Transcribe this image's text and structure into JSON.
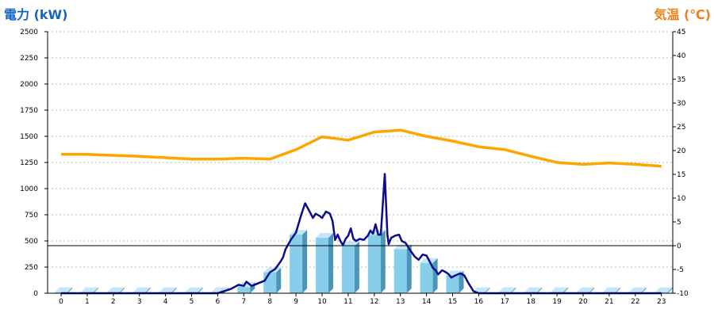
{
  "chart_data": {
    "type": "bar+line",
    "left_title": "電力 (kW)",
    "right_title": "気温 (℃)",
    "left_title_color": "#1565c0",
    "right_title_color": "#ef7f1a",
    "ylim_left": [
      0,
      2500
    ],
    "yticks_left": [
      0,
      250,
      500,
      750,
      1000,
      1250,
      1500,
      1750,
      2000,
      2250,
      2500
    ],
    "ylim_right": [
      -10,
      45
    ],
    "yticks_right": [
      -10,
      -5,
      0,
      5,
      10,
      15,
      20,
      25,
      30,
      35,
      40,
      45
    ],
    "categories": [
      "0",
      "1",
      "2",
      "3",
      "4",
      "5",
      "6",
      "7",
      "8",
      "9",
      "10",
      "11",
      "12",
      "13",
      "14",
      "15",
      "16",
      "17",
      "18",
      "19",
      "20",
      "21",
      "22",
      "23"
    ],
    "grid": true,
    "series": [
      {
        "kind": "bar",
        "axis": "left",
        "color": "#87ceeb",
        "values": [
          10,
          10,
          10,
          10,
          10,
          10,
          10,
          60,
          200,
          560,
          530,
          450,
          560,
          420,
          290,
          170,
          10,
          10,
          10,
          10,
          10,
          10,
          10,
          10
        ]
      },
      {
        "kind": "line",
        "axis": "left",
        "color": "#0d0d8c",
        "x": [
          0,
          1,
          2,
          3,
          4,
          5,
          6,
          6.5,
          6.8,
          7.0,
          7.1,
          7.3,
          7.6,
          7.8,
          8.0,
          8.2,
          8.4,
          8.5,
          8.6,
          8.8,
          9.0,
          9.2,
          9.35,
          9.5,
          9.65,
          9.75,
          9.9,
          10.0,
          10.15,
          10.3,
          10.4,
          10.5,
          10.6,
          10.7,
          10.8,
          10.9,
          11.0,
          11.1,
          11.2,
          11.3,
          11.45,
          11.6,
          11.75,
          11.85,
          11.95,
          12.05,
          12.15,
          12.25,
          12.4,
          12.5,
          12.55,
          12.65,
          12.8,
          12.95,
          13.05,
          13.2,
          13.35,
          13.55,
          13.7,
          13.85,
          14.0,
          14.15,
          14.25,
          14.35,
          14.45,
          14.6,
          14.75,
          14.85,
          14.95,
          15.1,
          15.3,
          15.45,
          15.6,
          15.8,
          16.0,
          17,
          18,
          19,
          20,
          21,
          22,
          23
        ],
        "values": [
          0,
          0,
          0,
          0,
          0,
          0,
          0,
          40,
          80,
          70,
          110,
          70,
          100,
          120,
          200,
          230,
          300,
          340,
          420,
          510,
          580,
          750,
          860,
          790,
          720,
          760,
          740,
          720,
          780,
          760,
          690,
          510,
          560,
          500,
          460,
          520,
          550,
          620,
          520,
          500,
          520,
          510,
          550,
          600,
          570,
          660,
          560,
          560,
          1140,
          560,
          470,
          530,
          550,
          560,
          500,
          480,
          420,
          350,
          320,
          370,
          360,
          290,
          240,
          220,
          180,
          220,
          200,
          180,
          150,
          170,
          190,
          170,
          100,
          20,
          0,
          0,
          0,
          0,
          0,
          0,
          0,
          0
        ]
      },
      {
        "kind": "line",
        "axis": "right",
        "color": "#ffa500",
        "x": [
          0,
          1,
          2,
          3,
          4,
          5,
          6,
          7,
          8,
          9,
          10,
          11,
          12,
          13,
          14,
          15,
          16,
          17,
          18,
          19,
          20,
          21,
          22,
          23
        ],
        "values": [
          19.2,
          19.2,
          19.0,
          18.8,
          18.5,
          18.2,
          18.2,
          18.4,
          18.2,
          20.2,
          22.9,
          22.2,
          23.9,
          24.3,
          23.0,
          22.0,
          20.8,
          20.2,
          18.8,
          17.5,
          17.1,
          17.4,
          17.1,
          16.7
        ]
      }
    ]
  }
}
